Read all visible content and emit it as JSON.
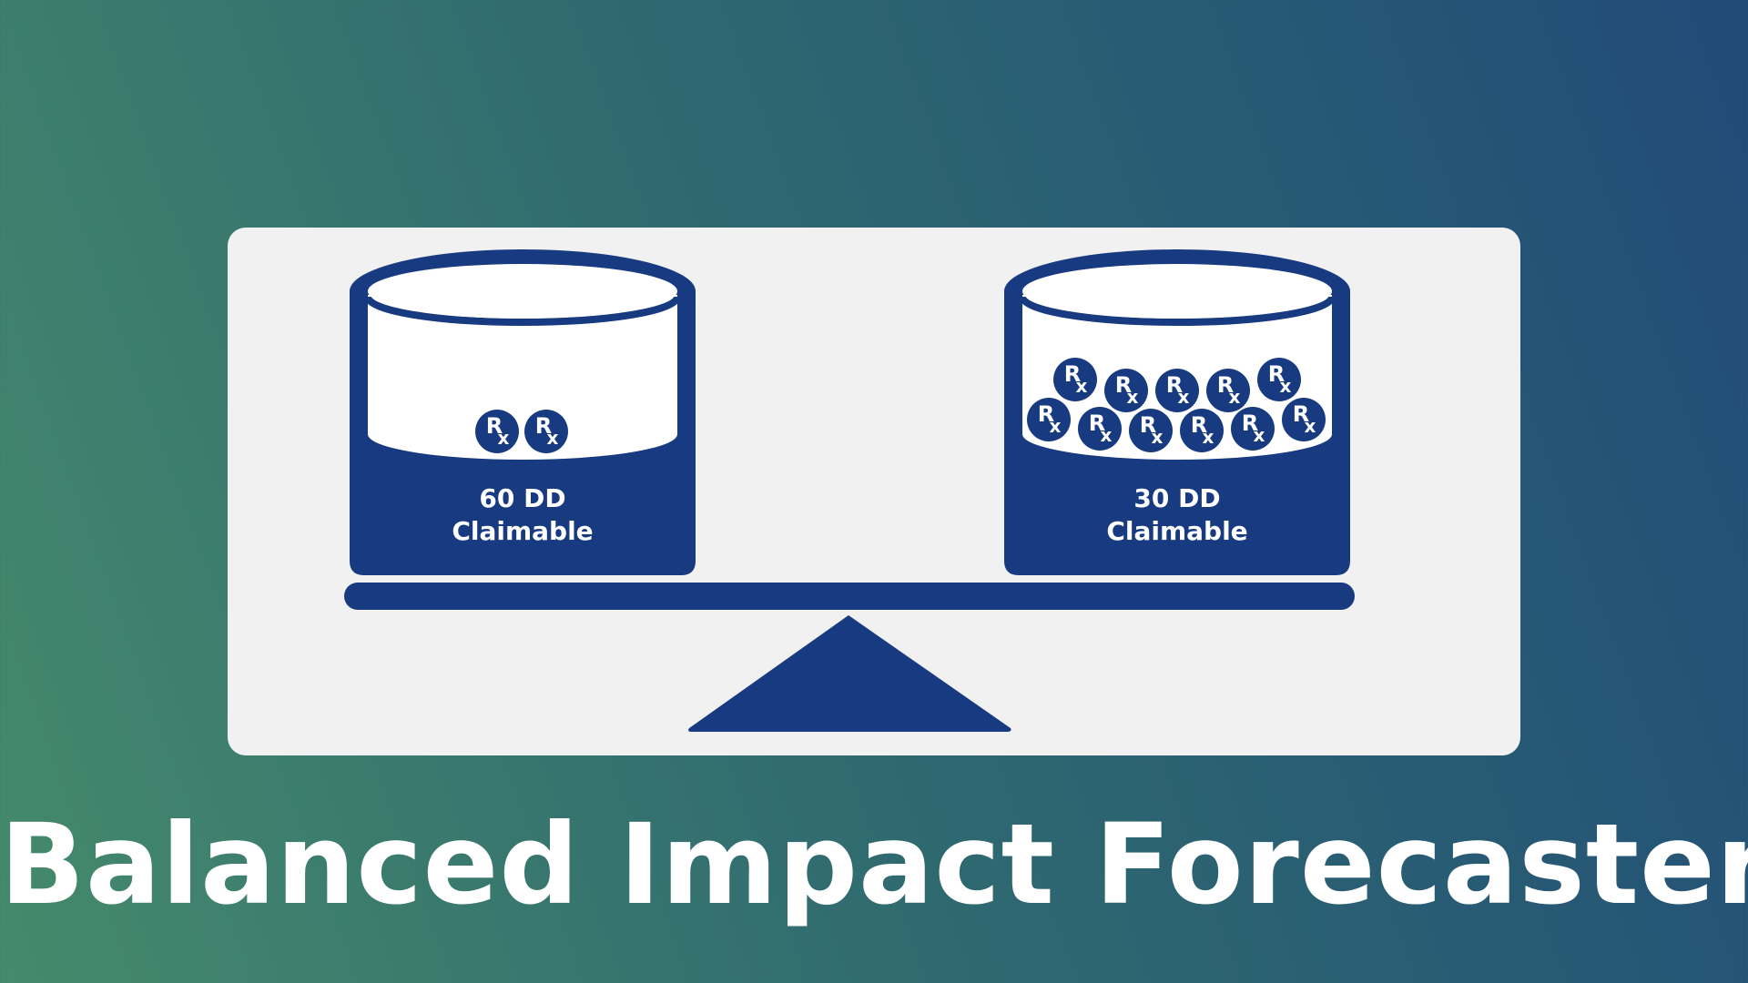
{
  "colors": {
    "navy": "#173a80",
    "panel": "#f1f1f1",
    "white": "#ffffff",
    "background_start": "#458a6c",
    "background_end": "#214b78"
  },
  "icons": {
    "pill": "rx-pill-icon"
  },
  "left_container": {
    "line1": "60 DD",
    "line2": "Claimable",
    "pill_count": 2
  },
  "right_container": {
    "line1": "30 DD",
    "line2": "Claimable",
    "pill_count": 11
  },
  "title": "Balanced Impact Forecaster"
}
